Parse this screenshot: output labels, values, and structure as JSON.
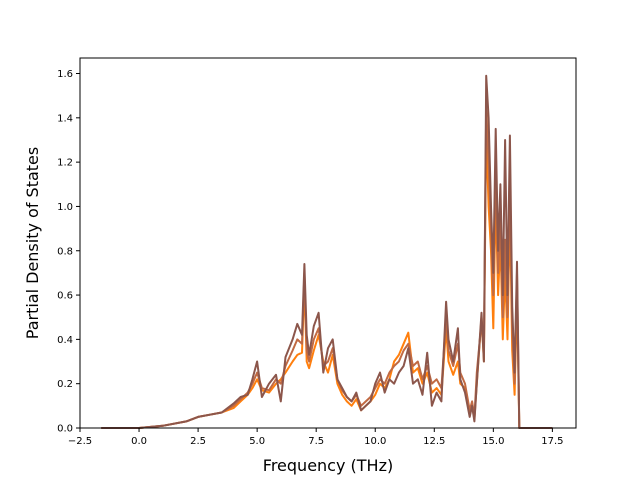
{
  "chart_data": {
    "type": "line",
    "title": "",
    "xlabel": "Frequency (THz)",
    "ylabel": "Partial Density of States",
    "xlim": [
      -2.5,
      18.5
    ],
    "ylim": [
      0,
      1.67
    ],
    "xticks": [
      "−2.5",
      "0.0",
      "2.5",
      "5.0",
      "7.5",
      "10.0",
      "12.5",
      "15.0",
      "17.5"
    ],
    "yticks": [
      "0.0",
      "0.2",
      "0.4",
      "0.6",
      "0.8",
      "1.0",
      "1.2",
      "1.4",
      "1.6"
    ],
    "grid": false,
    "legend": "none",
    "series": [
      {
        "color": "#ff7f0e",
        "x": [
          -1.6,
          0.0,
          1.0,
          2.0,
          2.5,
          3.0,
          3.5,
          4.0,
          4.3,
          4.6,
          4.8,
          5.0,
          5.2,
          5.5,
          5.8,
          6.0,
          6.2,
          6.5,
          6.7,
          6.9,
          7.0,
          7.1,
          7.2,
          7.4,
          7.6,
          7.8,
          8.0,
          8.2,
          8.4,
          8.6,
          8.8,
          9.0,
          9.2,
          9.4,
          9.6,
          9.8,
          10.0,
          10.2,
          10.4,
          10.6,
          10.8,
          11.0,
          11.2,
          11.4,
          11.6,
          11.8,
          12.0,
          12.2,
          12.4,
          12.6,
          12.8,
          13.0,
          13.1,
          13.3,
          13.5,
          13.6,
          13.8,
          14.0,
          14.1,
          14.2,
          14.3,
          14.5,
          14.6,
          14.7,
          14.8,
          14.9,
          15.0,
          15.1,
          15.2,
          15.3,
          15.4,
          15.5,
          15.6,
          15.7,
          15.8,
          15.9,
          16.0,
          16.1,
          17.5
        ],
        "y": [
          0.0,
          0.0,
          0.01,
          0.03,
          0.05,
          0.06,
          0.07,
          0.09,
          0.12,
          0.15,
          0.18,
          0.22,
          0.17,
          0.16,
          0.2,
          0.22,
          0.25,
          0.3,
          0.33,
          0.34,
          0.65,
          0.3,
          0.27,
          0.35,
          0.42,
          0.3,
          0.25,
          0.33,
          0.2,
          0.15,
          0.12,
          0.1,
          0.13,
          0.08,
          0.1,
          0.12,
          0.15,
          0.2,
          0.18,
          0.22,
          0.3,
          0.33,
          0.38,
          0.43,
          0.25,
          0.27,
          0.2,
          0.25,
          0.16,
          0.18,
          0.15,
          0.45,
          0.3,
          0.24,
          0.3,
          0.2,
          0.18,
          0.06,
          0.1,
          0.04,
          0.2,
          0.5,
          0.3,
          1.35,
          1.0,
          0.8,
          0.45,
          1.05,
          0.6,
          0.85,
          0.4,
          0.7,
          0.4,
          1.0,
          0.35,
          0.15,
          0.6,
          0.0,
          0.0
        ]
      },
      {
        "color": "#c16a43",
        "x": [
          -1.6,
          0.0,
          1.0,
          2.0,
          2.5,
          3.0,
          3.5,
          4.0,
          4.3,
          4.6,
          4.8,
          5.0,
          5.2,
          5.5,
          5.8,
          6.0,
          6.2,
          6.5,
          6.7,
          6.9,
          7.0,
          7.1,
          7.2,
          7.4,
          7.6,
          7.8,
          8.0,
          8.2,
          8.4,
          8.6,
          8.8,
          9.0,
          9.2,
          9.4,
          9.6,
          9.8,
          10.0,
          10.2,
          10.4,
          10.6,
          10.8,
          11.0,
          11.2,
          11.4,
          11.6,
          11.8,
          12.0,
          12.2,
          12.4,
          12.6,
          12.8,
          13.0,
          13.1,
          13.3,
          13.5,
          13.6,
          13.8,
          14.0,
          14.1,
          14.2,
          14.3,
          14.5,
          14.6,
          14.7,
          14.8,
          14.9,
          15.0,
          15.1,
          15.2,
          15.3,
          15.4,
          15.5,
          15.6,
          15.7,
          15.8,
          15.9,
          16.0,
          16.1,
          17.5
        ],
        "y": [
          0.0,
          0.0,
          0.01,
          0.03,
          0.05,
          0.06,
          0.07,
          0.1,
          0.13,
          0.16,
          0.2,
          0.25,
          0.18,
          0.17,
          0.22,
          0.2,
          0.28,
          0.35,
          0.4,
          0.38,
          0.7,
          0.35,
          0.3,
          0.4,
          0.45,
          0.28,
          0.3,
          0.36,
          0.22,
          0.17,
          0.14,
          0.12,
          0.15,
          0.1,
          0.12,
          0.14,
          0.18,
          0.22,
          0.2,
          0.25,
          0.28,
          0.3,
          0.35,
          0.38,
          0.28,
          0.3,
          0.22,
          0.28,
          0.2,
          0.22,
          0.18,
          0.5,
          0.35,
          0.28,
          0.38,
          0.25,
          0.2,
          0.08,
          0.12,
          0.05,
          0.25,
          0.48,
          0.35,
          1.45,
          1.2,
          0.9,
          0.6,
          1.2,
          0.7,
          0.95,
          0.5,
          0.85,
          0.5,
          1.15,
          0.45,
          0.2,
          0.7,
          0.0,
          0.0
        ]
      },
      {
        "color": "#8c564b",
        "x": [
          -1.6,
          0.0,
          1.0,
          2.0,
          2.5,
          3.0,
          3.5,
          4.0,
          4.3,
          4.6,
          4.8,
          5.0,
          5.2,
          5.5,
          5.8,
          6.0,
          6.2,
          6.5,
          6.7,
          6.9,
          7.0,
          7.1,
          7.2,
          7.4,
          7.6,
          7.8,
          8.0,
          8.2,
          8.4,
          8.6,
          8.8,
          9.0,
          9.2,
          9.4,
          9.6,
          9.8,
          10.0,
          10.2,
          10.4,
          10.6,
          10.8,
          11.0,
          11.2,
          11.4,
          11.6,
          11.8,
          12.0,
          12.2,
          12.4,
          12.6,
          12.8,
          13.0,
          13.1,
          13.3,
          13.5,
          13.6,
          13.8,
          14.0,
          14.1,
          14.2,
          14.3,
          14.5,
          14.6,
          14.7,
          14.8,
          14.9,
          15.0,
          15.1,
          15.2,
          15.3,
          15.4,
          15.5,
          15.6,
          15.7,
          15.8,
          15.9,
          16.0,
          16.1,
          17.5
        ],
        "y": [
          0.0,
          0.0,
          0.01,
          0.03,
          0.05,
          0.06,
          0.07,
          0.11,
          0.14,
          0.15,
          0.22,
          0.3,
          0.14,
          0.2,
          0.24,
          0.12,
          0.32,
          0.4,
          0.47,
          0.42,
          0.74,
          0.42,
          0.33,
          0.46,
          0.52,
          0.25,
          0.36,
          0.4,
          0.22,
          0.18,
          0.14,
          0.12,
          0.16,
          0.08,
          0.1,
          0.12,
          0.2,
          0.25,
          0.16,
          0.22,
          0.2,
          0.25,
          0.28,
          0.36,
          0.2,
          0.22,
          0.15,
          0.34,
          0.1,
          0.16,
          0.12,
          0.57,
          0.4,
          0.3,
          0.45,
          0.22,
          0.16,
          0.05,
          0.1,
          0.03,
          0.2,
          0.52,
          0.3,
          1.59,
          1.4,
          1.0,
          0.7,
          1.35,
          0.8,
          1.1,
          0.6,
          1.3,
          0.6,
          1.32,
          0.55,
          0.25,
          0.75,
          0.0,
          0.0
        ]
      }
    ]
  }
}
